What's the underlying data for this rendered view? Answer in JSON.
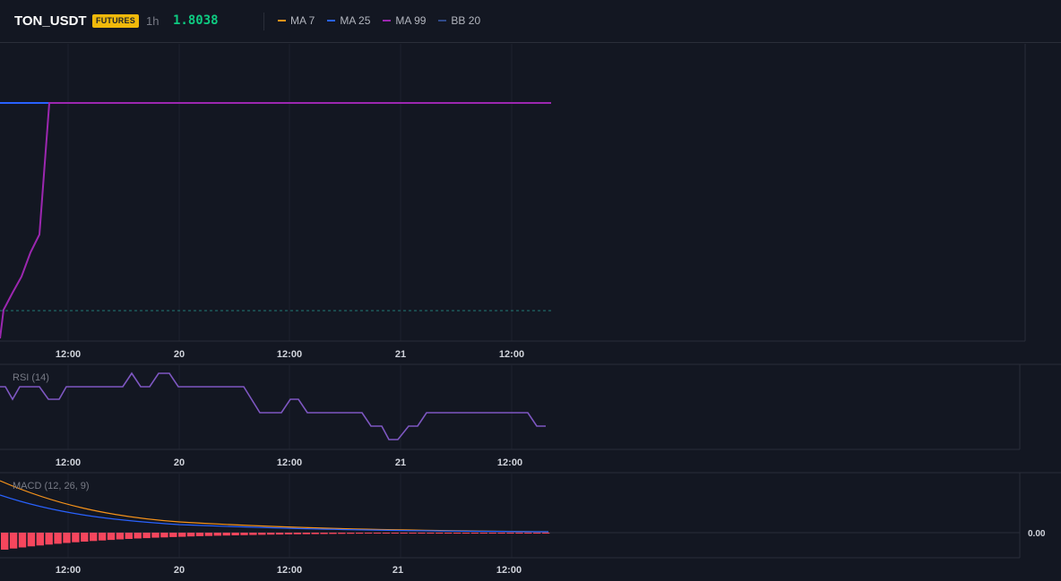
{
  "header": {
    "symbol": "TON_USDT",
    "badge": "FUTURES",
    "timeframe": "1h",
    "price": "1.8038",
    "legend": [
      {
        "label": "MA 7",
        "color": "#f7931a"
      },
      {
        "label": "MA 25",
        "color": "#2962ff"
      },
      {
        "label": "MA 99",
        "color": "#9c27b0"
      },
      {
        "label": "BB 20",
        "color": "#2f4a8a"
      }
    ]
  },
  "time_axis": {
    "labels": [
      "12:00",
      "20",
      "12:00",
      "21",
      "12:00"
    ]
  },
  "rsi": {
    "label": "RSI (14)"
  },
  "macd": {
    "label": "MACD (12, 26, 9)",
    "zero_label": "0.00"
  },
  "colors": {
    "background": "#131722",
    "grid": "#1e222d",
    "border": "#2a2e39",
    "rsi_line": "#7e57c2",
    "macd_line": "#f7931a",
    "signal_line": "#2962ff",
    "hist_negative": "#f6465d"
  }
}
